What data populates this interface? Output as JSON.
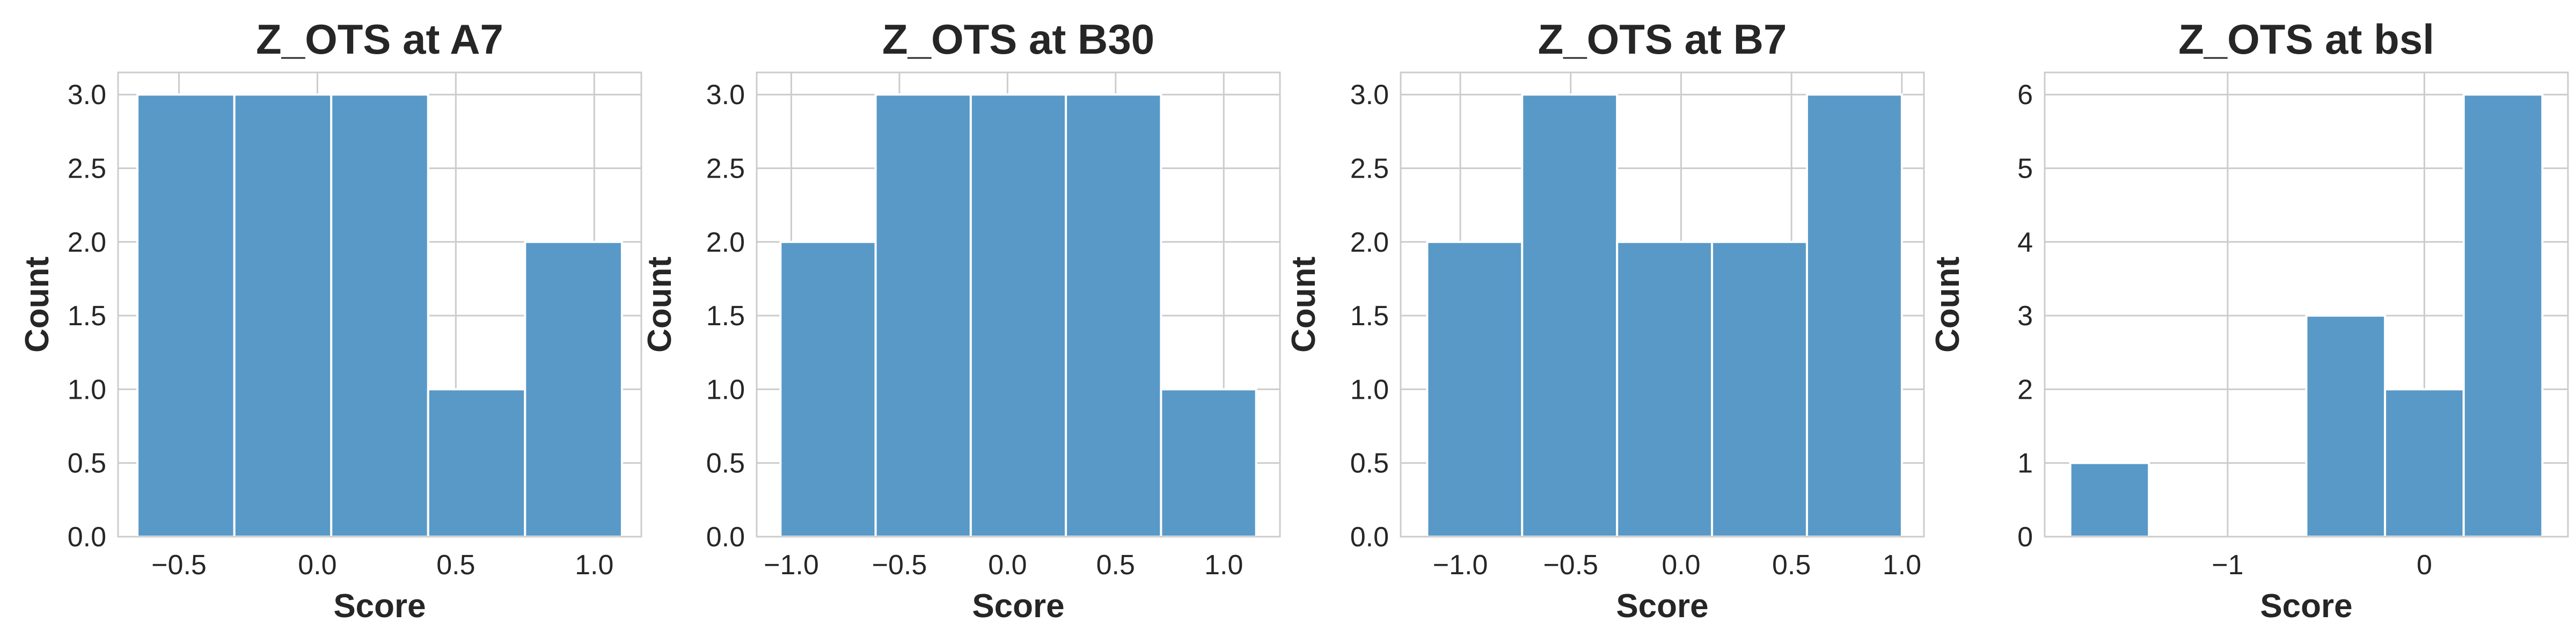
{
  "colors": {
    "bar": "#5899c8",
    "bar_edge": "#ffffff",
    "grid": "#cccccc",
    "background": "#ffffff"
  },
  "chart_data": [
    {
      "type": "bar",
      "title": "Z_OTS at A7",
      "xlabel": "Score",
      "ylabel": "Count",
      "bins": [
        [
          -0.65,
          -0.3
        ],
        [
          -0.3,
          0.05
        ],
        [
          0.05,
          0.4
        ],
        [
          0.4,
          0.75
        ],
        [
          0.75,
          1.1
        ]
      ],
      "values": [
        3,
        3,
        3,
        1,
        2
      ],
      "xlim": [
        -0.72,
        1.17
      ],
      "ylim": [
        0,
        3.15
      ],
      "xticks": [
        -0.5,
        0.0,
        0.5,
        1.0
      ],
      "xtick_labels": [
        "−0.5",
        "0.0",
        "0.5",
        "1.0"
      ],
      "yticks": [
        0,
        0.5,
        1.0,
        1.5,
        2.0,
        2.5,
        3.0
      ],
      "ytick_labels": [
        "0.0",
        "0.5",
        "1.0",
        "1.5",
        "2.0",
        "2.5",
        "3.0"
      ],
      "grid": true
    },
    {
      "type": "bar",
      "title": "Z_OTS at B30",
      "xlabel": "Score",
      "ylabel": "Count",
      "bins": [
        [
          -1.05,
          -0.61
        ],
        [
          -0.61,
          -0.17
        ],
        [
          -0.17,
          0.27
        ],
        [
          0.27,
          0.71
        ],
        [
          0.71,
          1.15
        ]
      ],
      "values": [
        2,
        3,
        3,
        3,
        1
      ],
      "xlim": [
        -1.16,
        1.26
      ],
      "ylim": [
        0,
        3.15
      ],
      "xticks": [
        -1.0,
        -0.5,
        0.0,
        0.5,
        1.0
      ],
      "xtick_labels": [
        "−1.0",
        "−0.5",
        "0.0",
        "0.5",
        "1.0"
      ],
      "yticks": [
        0,
        0.5,
        1.0,
        1.5,
        2.0,
        2.5,
        3.0
      ],
      "ytick_labels": [
        "0.0",
        "0.5",
        "1.0",
        "1.5",
        "2.0",
        "2.5",
        "3.0"
      ],
      "grid": true
    },
    {
      "type": "bar",
      "title": "Z_OTS at B7",
      "xlabel": "Score",
      "ylabel": "Count",
      "bins": [
        [
          -1.15,
          -0.72
        ],
        [
          -0.72,
          -0.29
        ],
        [
          -0.29,
          0.14
        ],
        [
          0.14,
          0.57
        ],
        [
          0.57,
          1.0
        ]
      ],
      "values": [
        2,
        3,
        2,
        2,
        3
      ],
      "xlim": [
        -1.27,
        1.1
      ],
      "ylim": [
        0,
        3.15
      ],
      "xticks": [
        -1.0,
        -0.5,
        0.0,
        0.5,
        1.0
      ],
      "xtick_labels": [
        "−1.0",
        "−0.5",
        "0.0",
        "0.5",
        "1.0"
      ],
      "yticks": [
        0,
        0.5,
        1.0,
        1.5,
        2.0,
        2.5,
        3.0
      ],
      "ytick_labels": [
        "0.0",
        "0.5",
        "1.0",
        "1.5",
        "2.0",
        "2.5",
        "3.0"
      ],
      "grid": true
    },
    {
      "type": "bar",
      "title": "Z_OTS at bsl",
      "xlabel": "Score",
      "ylabel": "Count",
      "bins": [
        [
          -1.8,
          -1.4
        ],
        [
          -1.4,
          -1.0
        ],
        [
          -1.0,
          -0.6
        ],
        [
          -0.6,
          -0.2
        ],
        [
          -0.2,
          0.2
        ],
        [
          0.2,
          0.6
        ]
      ],
      "values": [
        1,
        0,
        0,
        3,
        2,
        6
      ],
      "xlim": [
        -1.93,
        0.73
      ],
      "ylim": [
        0,
        6.3
      ],
      "xticks": [
        -1,
        0
      ],
      "xtick_labels": [
        "−1",
        "0"
      ],
      "yticks": [
        0,
        1,
        2,
        3,
        4,
        5,
        6
      ],
      "ytick_labels": [
        "0",
        "1",
        "2",
        "3",
        "4",
        "5",
        "6"
      ],
      "grid": true
    }
  ]
}
